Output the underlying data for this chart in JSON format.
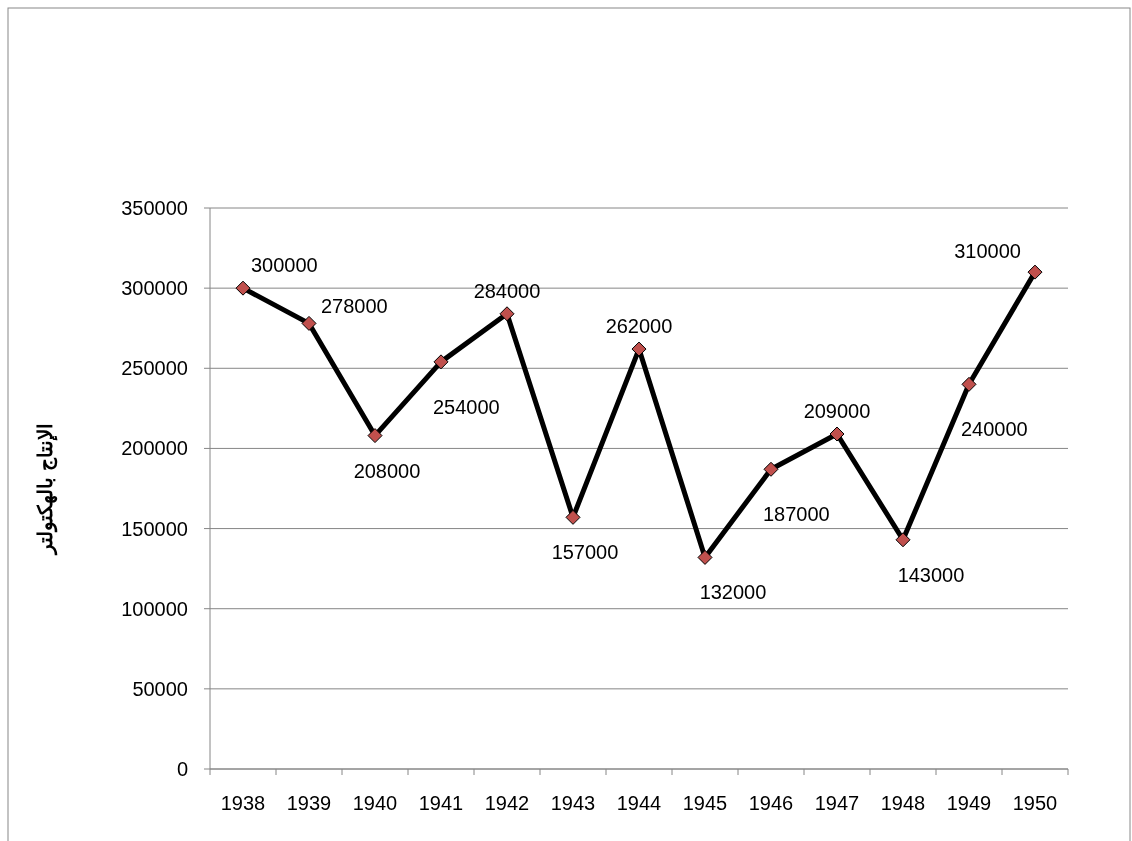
{
  "chart_data": {
    "type": "line",
    "ylabel": "الإنتاج بالهكتولتر",
    "categories": [
      "1938",
      "1939",
      "1940",
      "1941",
      "1942",
      "1943",
      "1944",
      "1945",
      "1946",
      "1947",
      "1948",
      "1949",
      "1950"
    ],
    "series": [
      {
        "color": "#000000",
        "values": [
          300000,
          278000,
          208000,
          254000,
          284000,
          157000,
          262000,
          132000,
          187000,
          209000,
          143000,
          240000,
          310000
        ]
      }
    ],
    "ylim": [
      0,
      350000
    ],
    "yticks": [
      0,
      50000,
      100000,
      150000,
      200000,
      250000,
      300000,
      350000
    ],
    "grid": "y",
    "marker": "diamond",
    "line_style": "solid",
    "data_labels": true
  }
}
